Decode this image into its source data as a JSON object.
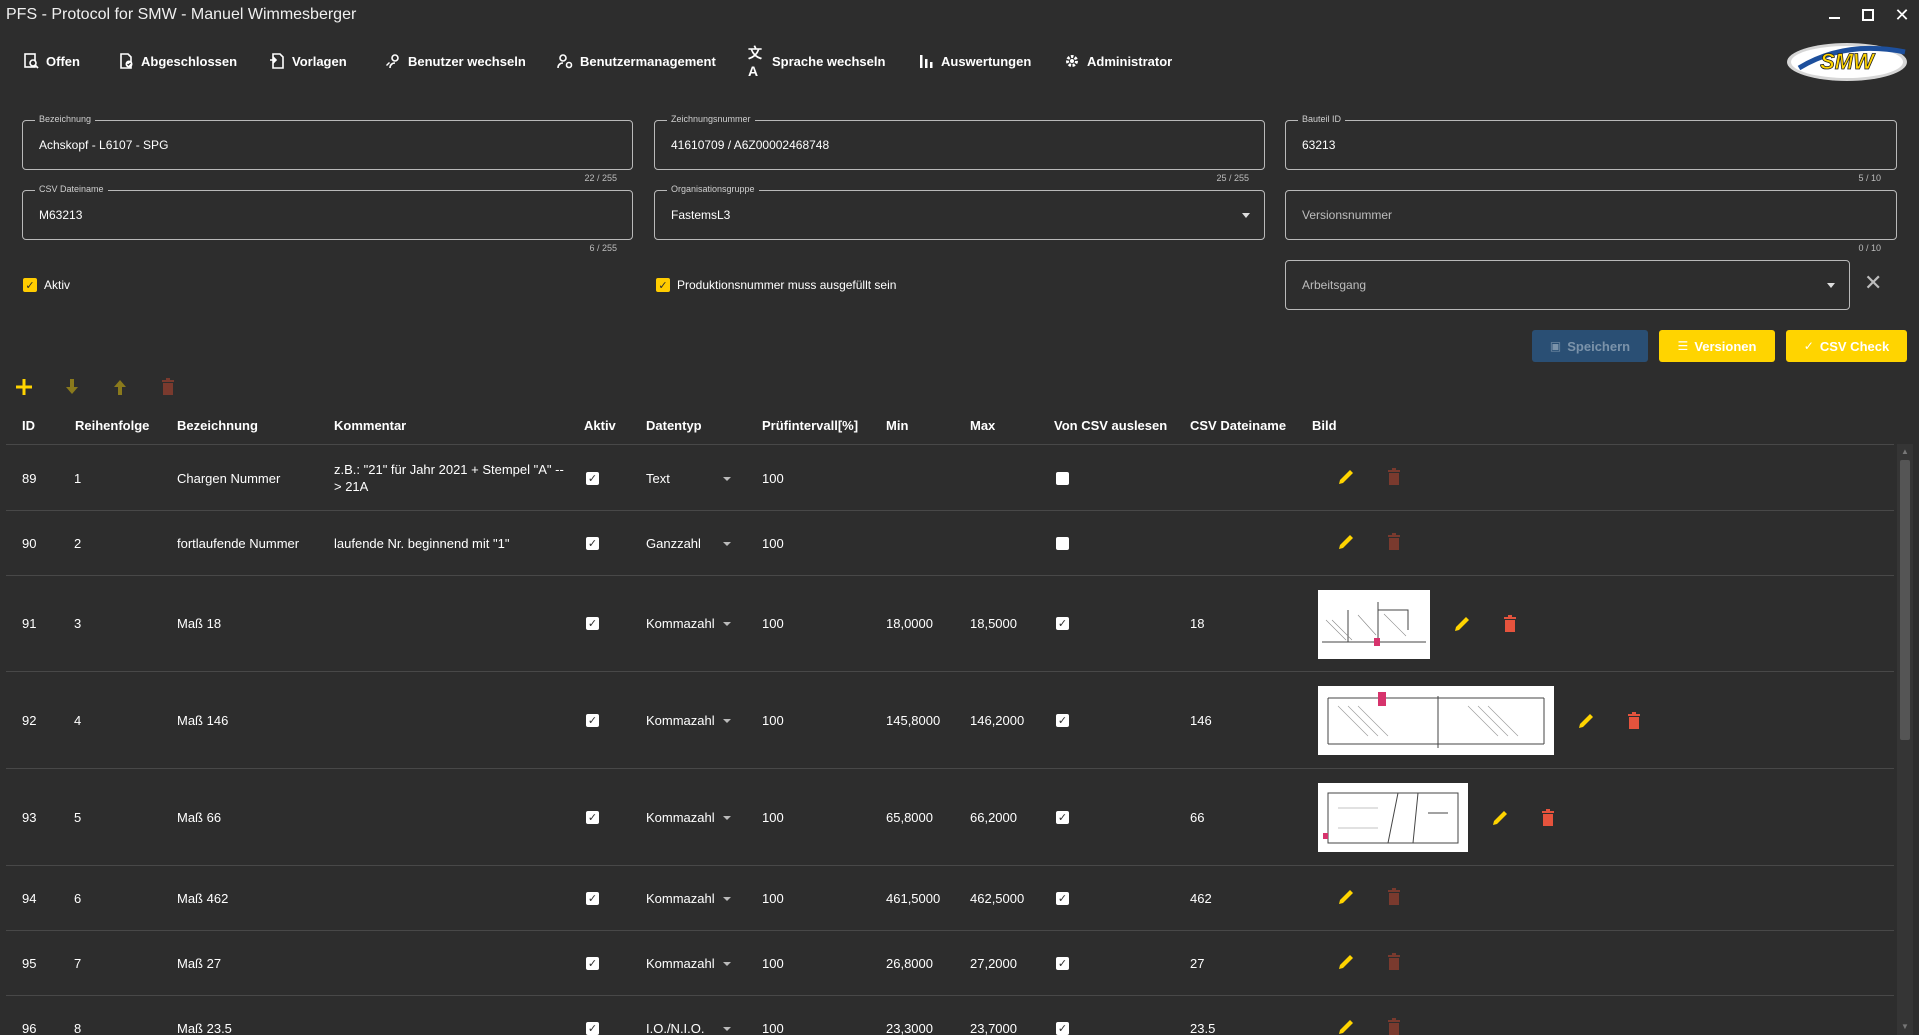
{
  "window": {
    "title": "PFS - Protocol for SMW - Manuel Wimmesberger"
  },
  "nav": {
    "items": [
      {
        "label": "Offen",
        "icon": "file-search-icon"
      },
      {
        "label": "Abgeschlossen",
        "icon": "file-check-icon"
      },
      {
        "label": "Vorlagen",
        "icon": "file-template-icon"
      },
      {
        "label": "Benutzer wechseln",
        "icon": "user-switch-icon"
      },
      {
        "label": "Benutzermanagement",
        "icon": "user-gear-icon"
      },
      {
        "label": "Sprache wechseln",
        "icon": "translate-icon"
      },
      {
        "label": "Auswertungen",
        "icon": "bar-chart-icon"
      },
      {
        "label": "Administrator",
        "icon": "gear-icon"
      }
    ],
    "logo_text": "SMW"
  },
  "form": {
    "bezeichnung": {
      "label": "Bezeichnung",
      "value": "Achskopf - L6107 - SPG",
      "counter": "22 / 255"
    },
    "zeichnungsnummer": {
      "label": "Zeichnungsnummer",
      "value": "41610709 / A6Z00002468748",
      "counter": "25 / 255"
    },
    "bauteil_id": {
      "label": "Bauteil ID",
      "value": "63213",
      "counter": "5 / 10"
    },
    "csv_dateiname": {
      "label": "CSV Dateiname",
      "value": "M63213",
      "counter": "6 / 255"
    },
    "organisationsgruppe": {
      "label": "Organisationsgruppe",
      "value": "FastemsL3"
    },
    "versionsnummer": {
      "placeholder": "Versionsnummer",
      "counter": "0 / 10"
    },
    "arbeitsgang": {
      "placeholder": "Arbeitsgang"
    },
    "aktiv_label": "Aktiv",
    "produktionsnummer_label": "Produktionsnummer muss ausgefüllt sein"
  },
  "buttons": {
    "speichern": "Speichern",
    "versionen": "Versionen",
    "csv_check": "CSV Check"
  },
  "table": {
    "headers": [
      "ID",
      "Reihenfolge",
      "Bezeichnung",
      "Kommentar",
      "Aktiv",
      "Datentyp",
      "Prüfintervall[%]",
      "Min",
      "Max",
      "Von CSV auslesen",
      "CSV Dateiname",
      "Bild"
    ],
    "rows": [
      {
        "id": "89",
        "order": "1",
        "name": "Chargen Nummer",
        "comment": "z.B.: \"21\" für Jahr 2021 + Stempel \"A\" --> 21A",
        "aktiv": true,
        "type": "Text",
        "interval": "100",
        "min": "",
        "max": "",
        "csv": false,
        "csvname": "",
        "image": false
      },
      {
        "id": "90",
        "order": "2",
        "name": "fortlaufende Nummer",
        "comment": "laufende Nr. beginnend mit \"1\"",
        "aktiv": true,
        "type": "Ganzzahl",
        "interval": "100",
        "min": "",
        "max": "",
        "csv": false,
        "csvname": "",
        "image": false
      },
      {
        "id": "91",
        "order": "3",
        "name": "Maß 18",
        "comment": "",
        "aktiv": true,
        "type": "Kommazahl",
        "interval": "100",
        "min": "18,0000",
        "max": "18,5000",
        "csv": true,
        "csvname": "18",
        "image": true
      },
      {
        "id": "92",
        "order": "4",
        "name": "Maß 146",
        "comment": "",
        "aktiv": true,
        "type": "Kommazahl",
        "interval": "100",
        "min": "145,8000",
        "max": "146,2000",
        "csv": true,
        "csvname": "146",
        "image": true
      },
      {
        "id": "93",
        "order": "5",
        "name": "Maß 66",
        "comment": "",
        "aktiv": true,
        "type": "Kommazahl",
        "interval": "100",
        "min": "65,8000",
        "max": "66,2000",
        "csv": true,
        "csvname": "66",
        "image": true
      },
      {
        "id": "94",
        "order": "6",
        "name": "Maß 462",
        "comment": "",
        "aktiv": true,
        "type": "Kommazahl",
        "interval": "100",
        "min": "461,5000",
        "max": "462,5000",
        "csv": true,
        "csvname": "462",
        "image": false
      },
      {
        "id": "95",
        "order": "7",
        "name": "Maß 27",
        "comment": "",
        "aktiv": true,
        "type": "Kommazahl",
        "interval": "100",
        "min": "26,8000",
        "max": "27,2000",
        "csv": true,
        "csvname": "27",
        "image": false
      },
      {
        "id": "96",
        "order": "8",
        "name": "Maß 23.5",
        "comment": "",
        "aktiv": true,
        "type": "I.O./N.I.O.",
        "interval": "100",
        "min": "23,3000",
        "max": "23,7000",
        "csv": true,
        "csvname": "23.5",
        "image": false
      }
    ]
  },
  "colors": {
    "accent": "#ffd400",
    "background": "#2d2d2d",
    "delete": "#e5533d",
    "delete_dim": "#7a3a2e",
    "save_disabled": "#2a4f74"
  }
}
